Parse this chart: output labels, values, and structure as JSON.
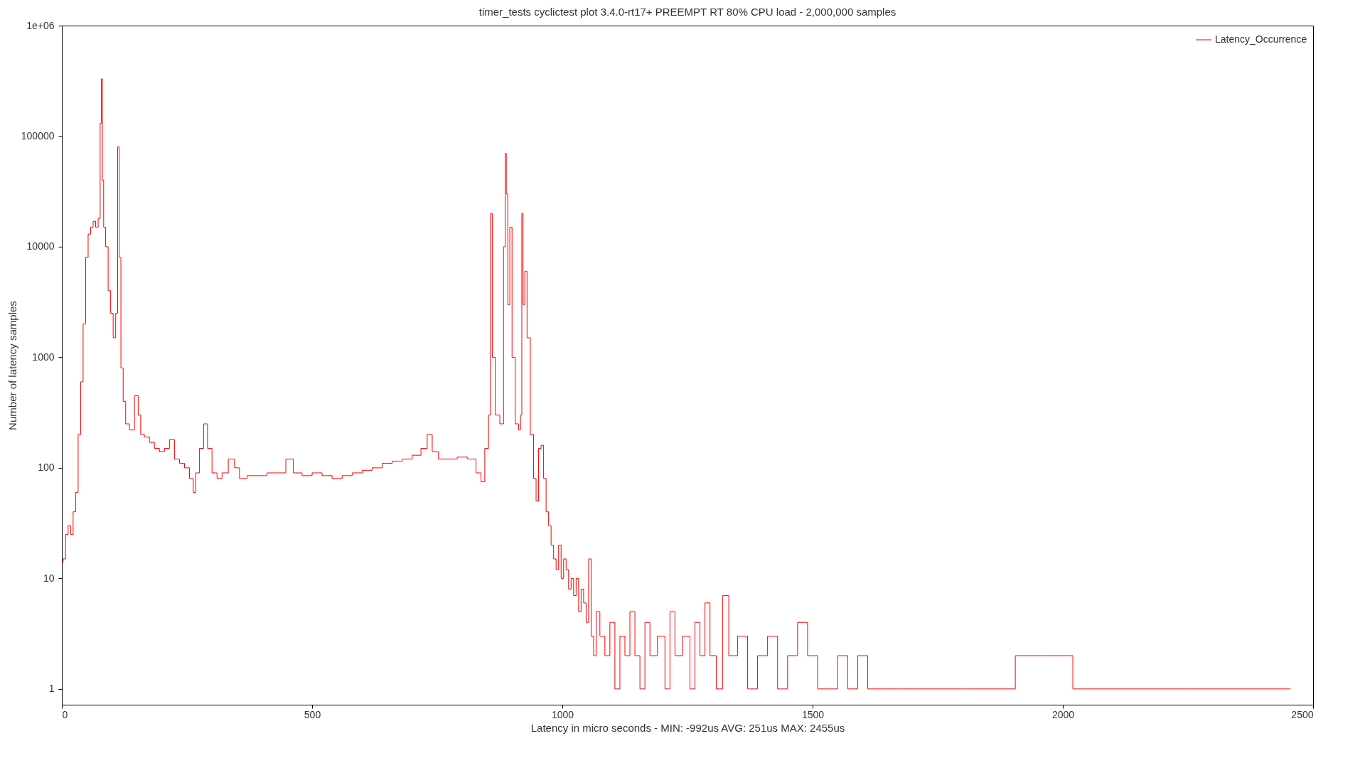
{
  "chart_data": {
    "type": "step",
    "title": "timer_tests cyclictest plot 3.4.0-rt17+ PREEMPT RT 80% CPU load  -  2,000,000 samples",
    "xlabel": "Latency in micro seconds - MIN:  -992us  AVG: 251us MAX: 2455us",
    "ylabel": "Number of latency samples",
    "x": [
      0,
      5,
      10,
      15,
      20,
      25,
      30,
      35,
      40,
      45,
      50,
      55,
      60,
      65,
      70,
      75,
      78,
      80,
      82,
      85,
      90,
      95,
      100,
      105,
      110,
      113,
      116,
      120,
      125,
      130,
      140,
      150,
      155,
      160,
      170,
      180,
      190,
      200,
      210,
      220,
      230,
      240,
      250,
      260,
      265,
      270,
      280,
      287,
      295,
      305,
      315,
      325,
      340,
      350,
      360,
      380,
      400,
      420,
      440,
      455,
      470,
      490,
      510,
      530,
      550,
      570,
      590,
      610,
      630,
      650,
      670,
      690,
      710,
      725,
      735,
      745,
      760,
      780,
      800,
      820,
      835,
      840,
      850,
      855,
      858,
      862,
      870,
      880,
      885,
      887,
      889,
      893,
      897,
      902,
      910,
      915,
      918,
      920,
      923,
      927,
      932,
      940,
      945,
      950,
      955,
      960,
      965,
      970,
      975,
      980,
      985,
      990,
      995,
      1000,
      1005,
      1010,
      1015,
      1020,
      1025,
      1030,
      1035,
      1040,
      1045,
      1050,
      1055,
      1060,
      1065,
      1070,
      1080,
      1090,
      1100,
      1110,
      1120,
      1130,
      1140,
      1150,
      1160,
      1170,
      1180,
      1200,
      1210,
      1220,
      1230,
      1250,
      1260,
      1270,
      1280,
      1290,
      1300,
      1315,
      1325,
      1340,
      1360,
      1380,
      1400,
      1420,
      1440,
      1460,
      1480,
      1500,
      1520,
      1540,
      1560,
      1580,
      1600,
      1620,
      1650,
      1690,
      1725,
      1890,
      1920,
      1990,
      2050,
      2455
    ],
    "series": [
      {
        "name": "Latency_Occurrence",
        "color": "#ff0000",
        "values": [
          14,
          15,
          25,
          30,
          25,
          40,
          60,
          200,
          600,
          2000,
          8000,
          13000,
          15000,
          17000,
          15000,
          18000,
          130000,
          330000,
          40000,
          15000,
          10000,
          4000,
          2500,
          1500,
          2500,
          80000,
          8000,
          800,
          400,
          250,
          220,
          450,
          300,
          200,
          190,
          170,
          150,
          140,
          150,
          180,
          120,
          110,
          100,
          80,
          60,
          90,
          150,
          250,
          150,
          90,
          80,
          90,
          120,
          100,
          80,
          85,
          85,
          90,
          90,
          120,
          90,
          85,
          90,
          85,
          80,
          85,
          90,
          95,
          100,
          110,
          115,
          120,
          130,
          150,
          200,
          140,
          120,
          120,
          125,
          120,
          90,
          75,
          150,
          300,
          20000,
          1000,
          300,
          250,
          10000,
          70000,
          30000,
          3000,
          15000,
          1000,
          250,
          220,
          300,
          20000,
          3000,
          6000,
          1500,
          200,
          80,
          50,
          150,
          160,
          80,
          40,
          30,
          20,
          15,
          12,
          20,
          10,
          15,
          12,
          8,
          10,
          7,
          10,
          5,
          8,
          6,
          4,
          15,
          3,
          2,
          5,
          3,
          2,
          4,
          1,
          3,
          2,
          5,
          2,
          1,
          4,
          2,
          3,
          1,
          5,
          2,
          3,
          1,
          4,
          2,
          6,
          2,
          1,
          7,
          2,
          3,
          1,
          2,
          3,
          1,
          2,
          4,
          2,
          1,
          1,
          2,
          1,
          2,
          1,
          1,
          1,
          1,
          1,
          2,
          2,
          1,
          1
        ]
      }
    ],
    "xlim": [
      0,
      2500
    ],
    "xticks": [
      0,
      500,
      1000,
      1500,
      2000,
      2500
    ],
    "ylim": [
      0.72,
      1000000
    ],
    "yticks": [
      1,
      10,
      100,
      1000,
      10000,
      100000,
      {
        "value": 1000000,
        "label": "1e+06"
      }
    ],
    "log": "y",
    "legend": "top right"
  }
}
